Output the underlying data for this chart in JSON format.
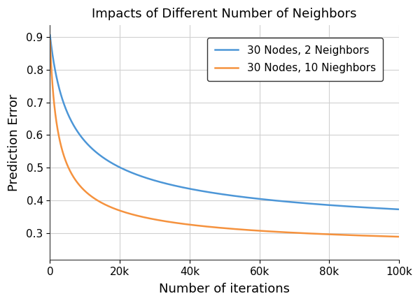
{
  "title": "Impacts of Different Number of Neighbors",
  "xlabel": "Number of iterations",
  "ylabel": "Prediction Error",
  "xlim": [
    0,
    100000
  ],
  "ylim": [
    0.22,
    0.935
  ],
  "line1_label": "30 Nodes, 2 Neighbors",
  "line2_label": "30 Nodes, 10 Nieghbors",
  "line1_color": "#4c96d7",
  "line2_color": "#f5923e",
  "line_width": 1.8,
  "background_color": "#ffffff",
  "title_fontsize": 13,
  "label_fontsize": 13,
  "tick_fontsize": 11,
  "legend_fontsize": 11,
  "decay1": {
    "a": 0.905,
    "c": 0.263,
    "tau": 3500,
    "alpha": 0.52
  },
  "decay2": {
    "a": 0.888,
    "c": 0.238,
    "tau": 1500,
    "alpha": 0.6
  }
}
